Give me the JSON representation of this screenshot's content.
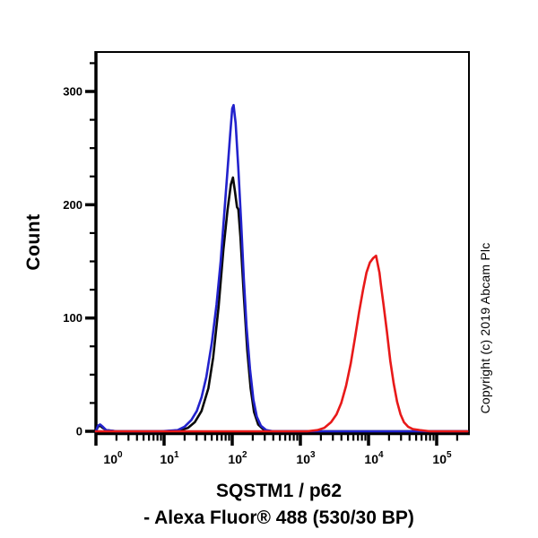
{
  "figure": {
    "ylabel": "Count",
    "copyright": "Copyright (c) 2019 Abcam Plc",
    "title_line1": "SQSTM1 / p62",
    "title_line2": "- Alexa Fluor® 488 (530/30 BP)"
  },
  "colors": {
    "axis": "#000000",
    "text": "#000000",
    "background": "#ffffff",
    "blue_curve": "#2222cc",
    "black_curve": "#0a0a0a",
    "red_curve": "#e81919"
  },
  "chart_data": {
    "type": "line",
    "subtype": "flow-cytometry-histogram",
    "title": "SQSTM1 / p62 - Alexa Fluor® 488 (530/30 BP)",
    "xlabel": "SQSTM1 / p62 - Alexa Fluor® 488 (530/30 BP)",
    "ylabel": "Count",
    "x_scale": "log10",
    "xlim_log10": [
      0,
      5.487
    ],
    "ylim": [
      -4,
      336
    ],
    "grid": false,
    "legend": "none",
    "x_major_tick_exponents": [
      0,
      1,
      2,
      3,
      4,
      5
    ],
    "x_tick_label_base": "10",
    "x_minor_multiples": [
      2,
      3,
      4,
      5,
      6,
      7,
      8,
      9
    ],
    "y_major_ticks": [
      0,
      100,
      200,
      300
    ],
    "y_major_tick_labels": [
      "0",
      "100",
      "200",
      "300"
    ],
    "y_minor_tick_step": 25,
    "series": [
      {
        "name": "black-curve",
        "color": "#0a0a0a",
        "peak_log10_x": 2.01,
        "peak_count": 224,
        "points": [
          [
            0.0,
            0
          ],
          [
            0.03,
            4
          ],
          [
            0.06,
            5
          ],
          [
            0.1,
            3
          ],
          [
            0.15,
            1
          ],
          [
            0.3,
            0
          ],
          [
            1.0,
            0
          ],
          [
            1.25,
            1
          ],
          [
            1.35,
            3
          ],
          [
            1.45,
            8
          ],
          [
            1.55,
            18
          ],
          [
            1.65,
            38
          ],
          [
            1.72,
            65
          ],
          [
            1.8,
            110
          ],
          [
            1.87,
            160
          ],
          [
            1.93,
            195
          ],
          [
            1.98,
            218
          ],
          [
            2.01,
            224
          ],
          [
            2.04,
            212
          ],
          [
            2.07,
            198
          ],
          [
            2.09,
            196
          ],
          [
            2.12,
            172
          ],
          [
            2.17,
            120
          ],
          [
            2.22,
            72
          ],
          [
            2.27,
            38
          ],
          [
            2.32,
            17
          ],
          [
            2.38,
            6
          ],
          [
            2.45,
            2
          ],
          [
            2.55,
            0
          ],
          [
            5.45,
            0
          ]
        ]
      },
      {
        "name": "blue-curve",
        "color": "#2222cc",
        "peak_log10_x": 2.02,
        "peak_count": 288,
        "points": [
          [
            0.0,
            0
          ],
          [
            0.03,
            5
          ],
          [
            0.06,
            6
          ],
          [
            0.1,
            4
          ],
          [
            0.15,
            1
          ],
          [
            0.3,
            0
          ],
          [
            0.95,
            0
          ],
          [
            1.2,
            1
          ],
          [
            1.3,
            4
          ],
          [
            1.4,
            10
          ],
          [
            1.48,
            18
          ],
          [
            1.55,
            30
          ],
          [
            1.62,
            48
          ],
          [
            1.7,
            78
          ],
          [
            1.77,
            112
          ],
          [
            1.83,
            150
          ],
          [
            1.88,
            190
          ],
          [
            1.93,
            230
          ],
          [
            1.97,
            262
          ],
          [
            2.0,
            285
          ],
          [
            2.02,
            288
          ],
          [
            2.05,
            272
          ],
          [
            2.09,
            232
          ],
          [
            2.13,
            185
          ],
          [
            2.17,
            135
          ],
          [
            2.21,
            92
          ],
          [
            2.26,
            55
          ],
          [
            2.31,
            28
          ],
          [
            2.36,
            13
          ],
          [
            2.42,
            5
          ],
          [
            2.5,
            1
          ],
          [
            2.6,
            0
          ],
          [
            5.45,
            0
          ]
        ]
      },
      {
        "name": "red-curve",
        "color": "#e81919",
        "peak_log10_x": 4.11,
        "peak_count": 155,
        "points": [
          [
            0.0,
            0
          ],
          [
            3.1,
            0
          ],
          [
            3.25,
            1
          ],
          [
            3.35,
            3
          ],
          [
            3.45,
            8
          ],
          [
            3.53,
            15
          ],
          [
            3.6,
            25
          ],
          [
            3.67,
            40
          ],
          [
            3.74,
            60
          ],
          [
            3.8,
            82
          ],
          [
            3.86,
            105
          ],
          [
            3.92,
            125
          ],
          [
            3.97,
            140
          ],
          [
            4.02,
            149
          ],
          [
            4.07,
            153
          ],
          [
            4.11,
            155
          ],
          [
            4.13,
            149
          ],
          [
            4.16,
            140
          ],
          [
            4.18,
            130
          ],
          [
            4.22,
            112
          ],
          [
            4.27,
            88
          ],
          [
            4.32,
            62
          ],
          [
            4.37,
            42
          ],
          [
            4.42,
            26
          ],
          [
            4.47,
            15
          ],
          [
            4.52,
            8
          ],
          [
            4.58,
            4
          ],
          [
            4.65,
            2
          ],
          [
            4.75,
            1
          ],
          [
            4.9,
            0
          ],
          [
            5.45,
            0
          ]
        ]
      }
    ]
  }
}
